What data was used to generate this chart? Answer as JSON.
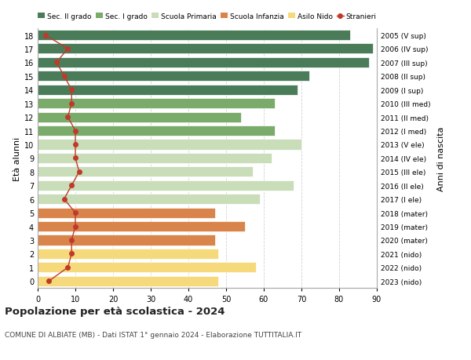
{
  "ages": [
    18,
    17,
    16,
    15,
    14,
    13,
    12,
    11,
    10,
    9,
    8,
    7,
    6,
    5,
    4,
    3,
    2,
    1,
    0
  ],
  "years": [
    "2005 (V sup)",
    "2006 (IV sup)",
    "2007 (III sup)",
    "2008 (II sup)",
    "2009 (I sup)",
    "2010 (III med)",
    "2011 (II med)",
    "2012 (I med)",
    "2013 (V ele)",
    "2014 (IV ele)",
    "2015 (III ele)",
    "2016 (II ele)",
    "2017 (I ele)",
    "2018 (mater)",
    "2019 (mater)",
    "2020 (mater)",
    "2021 (nido)",
    "2022 (nido)",
    "2023 (nido)"
  ],
  "bar_values": [
    83,
    89,
    88,
    72,
    69,
    63,
    54,
    63,
    70,
    62,
    57,
    68,
    59,
    47,
    55,
    47,
    48,
    58,
    48
  ],
  "bar_colors": [
    "#4a7c59",
    "#4a7c59",
    "#4a7c59",
    "#4a7c59",
    "#4a7c59",
    "#7aab6a",
    "#7aab6a",
    "#7aab6a",
    "#c8ddb8",
    "#c8ddb8",
    "#c8ddb8",
    "#c8ddb8",
    "#c8ddb8",
    "#d9844a",
    "#d9844a",
    "#d9844a",
    "#f5d97a",
    "#f5d97a",
    "#f5d97a"
  ],
  "stranieri_values": [
    2,
    8,
    5,
    7,
    9,
    9,
    8,
    10,
    10,
    10,
    11,
    9,
    7,
    10,
    10,
    9,
    9,
    8,
    3
  ],
  "legend_labels": [
    "Sec. II grado",
    "Sec. I grado",
    "Scuola Primaria",
    "Scuola Infanzia",
    "Asilo Nido",
    "Stranieri"
  ],
  "legend_colors": [
    "#4a7c59",
    "#7aab6a",
    "#c8ddb8",
    "#d9844a",
    "#f5d97a",
    "#c0392b"
  ],
  "ylabel_left": "Età alunni",
  "ylabel_right": "Anni di nascita",
  "title": "Popolazione per età scolastica - 2024",
  "subtitle": "COMUNE DI ALBIATE (MB) - Dati ISTAT 1° gennaio 2024 - Elaborazione TUTTITALIA.IT",
  "xlim": [
    0,
    90
  ],
  "xticks": [
    0,
    10,
    20,
    30,
    40,
    50,
    60,
    70,
    80,
    90
  ],
  "stranieri_color": "#c0392b",
  "background_color": "#ffffff",
  "grid_color": "#cccccc"
}
